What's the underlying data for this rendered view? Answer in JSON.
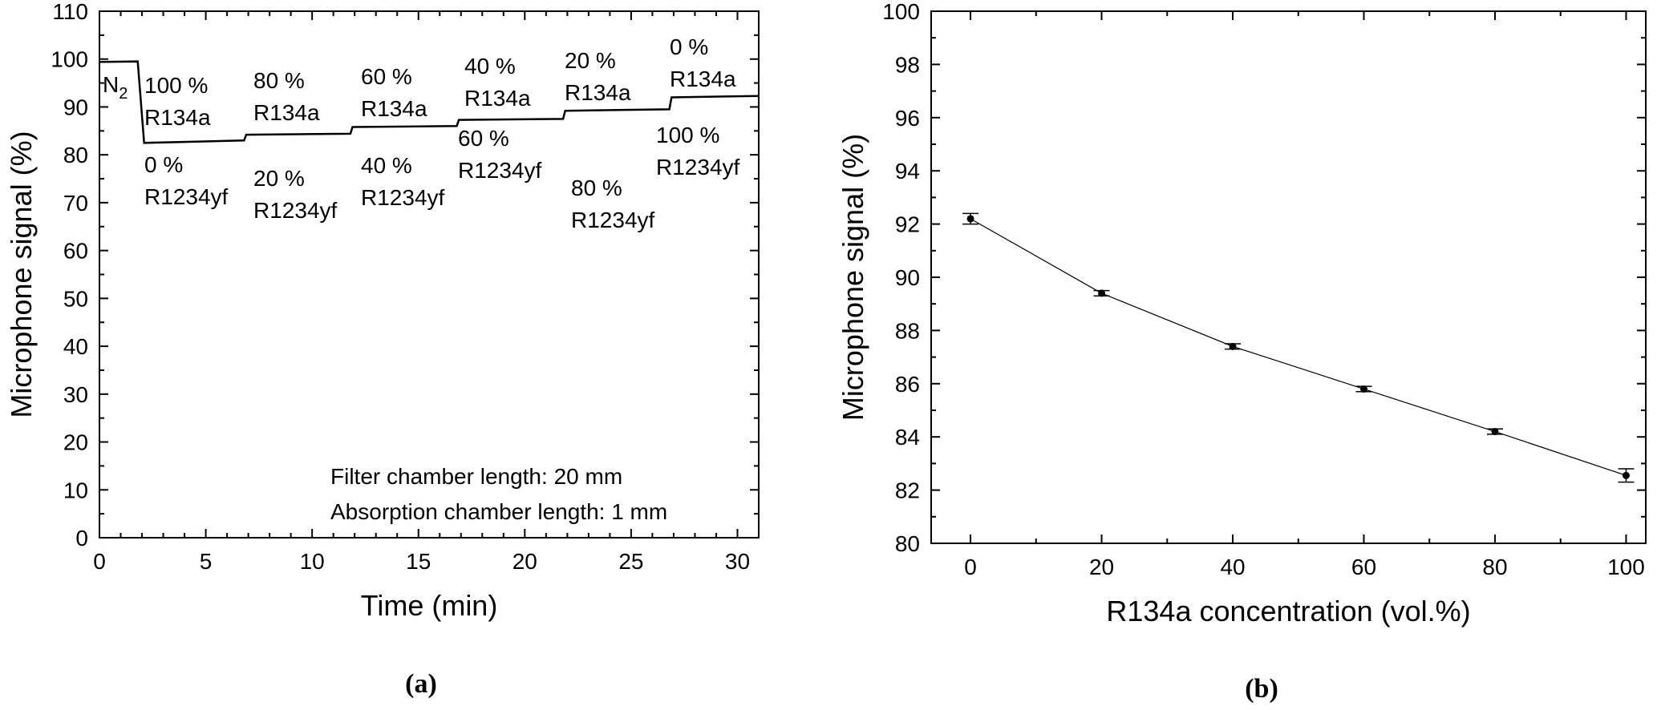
{
  "panels": [
    {
      "label": "(a)"
    },
    {
      "label": "(b)"
    }
  ],
  "chart_data": [
    {
      "type": "line",
      "xlabel": "Time (min)",
      "ylabel": "Microphone signal (%)",
      "xlim": [
        0,
        31
      ],
      "ylim": [
        0,
        110
      ],
      "x_ticks": [
        0,
        5,
        10,
        15,
        20,
        25,
        30
      ],
      "y_ticks": [
        0,
        10,
        20,
        30,
        40,
        50,
        60,
        70,
        80,
        90,
        100,
        110
      ],
      "grid": false,
      "series": [
        {
          "x": [
            0,
            1.8,
            2.1,
            6.8,
            6.9,
            11.8,
            11.9,
            16.8,
            16.9,
            21.8,
            21.9,
            26.8,
            26.9,
            31
          ],
          "y": [
            99.4,
            99.5,
            82.5,
            83.0,
            84.2,
            84.4,
            85.8,
            86.0,
            87.3,
            87.5,
            89.2,
            89.5,
            92.0,
            92.3
          ]
        }
      ],
      "annotations": [
        {
          "lines": [
            "N",
            "2"
          ],
          "kind": "subscript"
        },
        {
          "lines": [
            "100 %",
            "R134a"
          ]
        },
        {
          "lines": [
            "0 %",
            "R1234yf"
          ]
        },
        {
          "lines": [
            "80 %",
            "R134a"
          ]
        },
        {
          "lines": [
            "20 %",
            "R1234yf"
          ]
        },
        {
          "lines": [
            "60 %",
            "R134a"
          ]
        },
        {
          "lines": [
            "40 %",
            "R1234yf"
          ]
        },
        {
          "lines": [
            "40 %",
            "R134a"
          ]
        },
        {
          "lines": [
            "60 %",
            "R1234yf"
          ]
        },
        {
          "lines": [
            "20 %",
            "R134a"
          ]
        },
        {
          "lines": [
            "80 %",
            "R1234yf"
          ]
        },
        {
          "lines": [
            "0 %",
            "R134a"
          ]
        },
        {
          "lines": [
            "100 %",
            "R1234yf"
          ]
        },
        {
          "lines": [
            "Filter chamber length: 20 mm"
          ]
        },
        {
          "lines": [
            "Absorption chamber length: 1 mm"
          ]
        }
      ]
    },
    {
      "type": "line",
      "xlabel": "R134a concentration (vol.%)",
      "ylabel": "Microphone signal (%)",
      "xlim": [
        -6,
        103
      ],
      "ylim": [
        80,
        100
      ],
      "x_ticks": [
        0,
        20,
        40,
        60,
        80,
        100
      ],
      "y_ticks": [
        80,
        82,
        84,
        86,
        88,
        90,
        92,
        94,
        96,
        98,
        100
      ],
      "grid": false,
      "series": [
        {
          "x": [
            0,
            20,
            40,
            60,
            80,
            100
          ],
          "y": [
            92.2,
            89.4,
            87.4,
            85.8,
            84.2,
            82.55
          ],
          "error": [
            0.2,
            0.1,
            0.1,
            0.1,
            0.1,
            0.25
          ]
        }
      ]
    }
  ]
}
